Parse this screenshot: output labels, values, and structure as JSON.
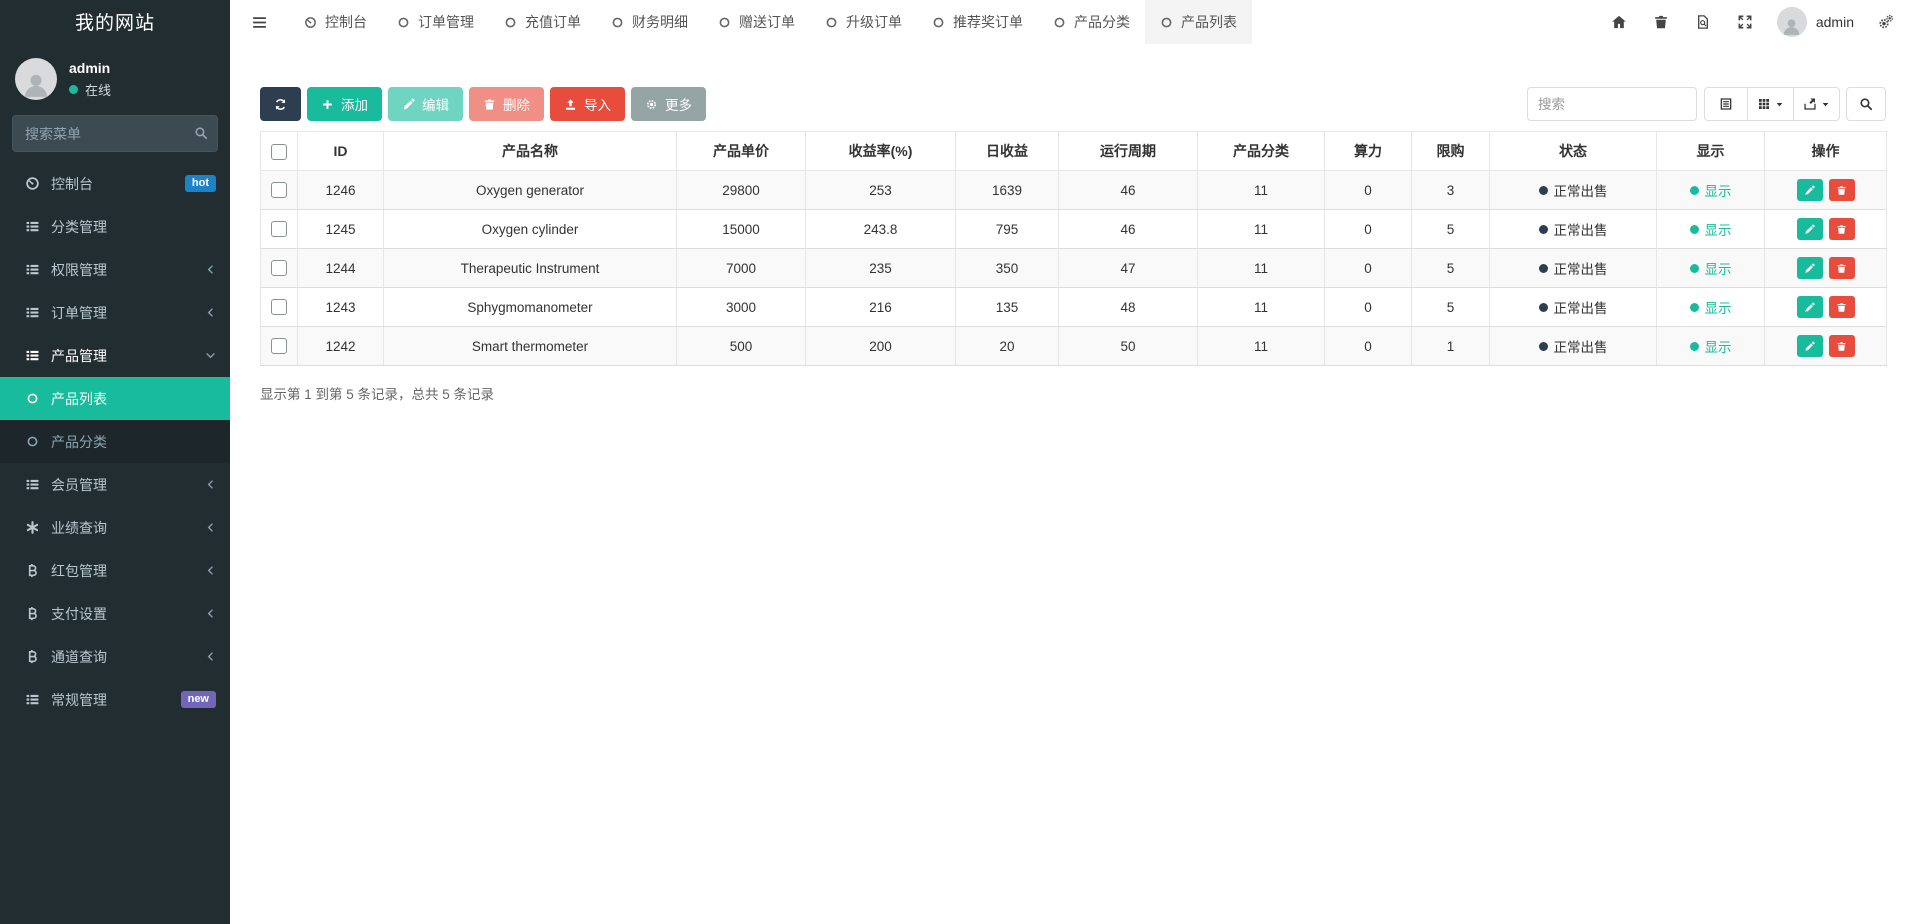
{
  "colors": {
    "accent": "#18bc9c",
    "danger": "#e74c3c",
    "dark": "#2c3e50",
    "gray": "#95a5a6",
    "badge_hot": "#1c84c6",
    "badge_new": "#7266ba",
    "sidebar_bg": "#222d32",
    "sidebar_submenu_bg": "#1c262b",
    "status_dot_dark": "#2c3e50"
  },
  "sidebar": {
    "brand": "我的网站",
    "user": {
      "name": "admin",
      "status": "在线"
    },
    "search_placeholder": "搜索菜单",
    "items": [
      {
        "name": "sidebar-item-dashboard",
        "label": "控制台",
        "icon": "gauge-icon",
        "badge": "hot"
      },
      {
        "name": "sidebar-item-category-mgmt",
        "label": "分类管理",
        "icon": "list-icon"
      },
      {
        "name": "sidebar-item-permission-mgmt",
        "label": "权限管理",
        "icon": "list-icon",
        "chevron": "left"
      },
      {
        "name": "sidebar-item-order-mgmt",
        "label": "订单管理",
        "icon": "list-icon",
        "chevron": "left"
      },
      {
        "name": "sidebar-item-product-mgmt",
        "label": "产品管理",
        "icon": "list-icon",
        "chevron": "down",
        "expanded": true
      },
      {
        "name": "sidebar-item-product-list",
        "label": "产品列表",
        "icon": "circle-icon",
        "submenu": true,
        "active": true
      },
      {
        "name": "sidebar-item-product-category",
        "label": "产品分类",
        "icon": "circle-icon",
        "submenu": true
      },
      {
        "name": "sidebar-item-member-mgmt",
        "label": "会员管理",
        "icon": "list-icon",
        "chevron": "left"
      },
      {
        "name": "sidebar-item-performance-query",
        "label": "业绩查询",
        "icon": "asterisk-icon",
        "chevron": "left"
      },
      {
        "name": "sidebar-item-redpacket-mgmt",
        "label": "红包管理",
        "icon": "baht-icon",
        "chevron": "left"
      },
      {
        "name": "sidebar-item-payment-settings",
        "label": "支付设置",
        "icon": "baht-icon",
        "chevron": "left"
      },
      {
        "name": "sidebar-item-channel-query",
        "label": "通道查询",
        "icon": "baht-icon",
        "chevron": "left"
      },
      {
        "name": "sidebar-item-general-mgmt",
        "label": "常规管理",
        "icon": "list-icon",
        "badge": "new"
      }
    ]
  },
  "navbar": {
    "tabs": [
      {
        "name": "tab-dashboard",
        "label": "控制台",
        "icon": "gauge-icon"
      },
      {
        "name": "tab-order-mgmt",
        "label": "订单管理",
        "icon": "circle-icon"
      },
      {
        "name": "tab-recharge-orders",
        "label": "充值订单",
        "icon": "circle-icon"
      },
      {
        "name": "tab-finance-detail",
        "label": "财务明细",
        "icon": "circle-icon"
      },
      {
        "name": "tab-gift-orders",
        "label": "赠送订单",
        "icon": "circle-icon"
      },
      {
        "name": "tab-upgrade-orders",
        "label": "升级订单",
        "icon": "circle-icon"
      },
      {
        "name": "tab-referral-orders",
        "label": "推荐奖订单",
        "icon": "circle-icon"
      },
      {
        "name": "tab-product-category",
        "label": "产品分类",
        "icon": "circle-icon"
      },
      {
        "name": "tab-product-list",
        "label": "产品列表",
        "icon": "circle-icon",
        "active": true
      }
    ],
    "actions": [
      {
        "name": "home-button",
        "icon": "home-icon"
      },
      {
        "name": "clear-trash-button",
        "icon": "trash-icon"
      },
      {
        "name": "clear-cache-button",
        "icon": "file-search-icon"
      },
      {
        "name": "fullscreen-button",
        "icon": "fullscreen-icon"
      }
    ],
    "user": {
      "name": "admin"
    },
    "settings_icon": "gears-icon"
  },
  "toolbar": {
    "buttons": [
      {
        "name": "refresh-button",
        "icon": "refresh-icon",
        "label": "",
        "style": "dark"
      },
      {
        "name": "add-button",
        "icon": "plus-icon",
        "label": "添加",
        "style": "success"
      },
      {
        "name": "edit-button",
        "icon": "pencil-icon",
        "label": "编辑",
        "style": "success",
        "disabled": true
      },
      {
        "name": "delete-button",
        "icon": "trash-icon",
        "label": "删除",
        "style": "danger",
        "disabled": true
      },
      {
        "name": "import-button",
        "icon": "upload-icon",
        "label": "导入",
        "style": "danger"
      },
      {
        "name": "more-button",
        "icon": "gear-icon",
        "label": "更多",
        "style": "default"
      }
    ],
    "search_placeholder": "搜索",
    "view_buttons": [
      {
        "name": "detail-view-button",
        "icon": "detail-view-icon"
      },
      {
        "name": "columns-button",
        "icon": "grid-icon",
        "caret": true
      },
      {
        "name": "export-button",
        "icon": "export-icon",
        "caret": true
      }
    ],
    "search_button_icon": "search-icon"
  },
  "table": {
    "columns": [
      "ID",
      "产品名称",
      "产品单价",
      "收益率(%)",
      "日收益",
      "运行周期",
      "产品分类",
      "算力",
      "限购",
      "状态",
      "显示",
      "操作"
    ],
    "rows": [
      {
        "id": "1246",
        "name": "Oxygen generator",
        "price": "29800",
        "rate": "253",
        "daily": "1639",
        "cycle": "46",
        "category": "11",
        "power": "0",
        "limit": "3",
        "status": "正常出售",
        "display": "显示"
      },
      {
        "id": "1245",
        "name": "Oxygen cylinder",
        "price": "15000",
        "rate": "243.8",
        "daily": "795",
        "cycle": "46",
        "category": "11",
        "power": "0",
        "limit": "5",
        "status": "正常出售",
        "display": "显示"
      },
      {
        "id": "1244",
        "name": "Therapeutic Instrument",
        "price": "7000",
        "rate": "235",
        "daily": "350",
        "cycle": "47",
        "category": "11",
        "power": "0",
        "limit": "5",
        "status": "正常出售",
        "display": "显示"
      },
      {
        "id": "1243",
        "name": "Sphygmomanometer",
        "price": "3000",
        "rate": "216",
        "daily": "135",
        "cycle": "48",
        "category": "11",
        "power": "0",
        "limit": "5",
        "status": "正常出售",
        "display": "显示"
      },
      {
        "id": "1242",
        "name": "Smart thermometer",
        "price": "500",
        "rate": "200",
        "daily": "20",
        "cycle": "50",
        "category": "11",
        "power": "0",
        "limit": "1",
        "status": "正常出售",
        "display": "显示"
      }
    ],
    "summary": "显示第 1 到第 5 条记录，总共 5 条记录"
  }
}
